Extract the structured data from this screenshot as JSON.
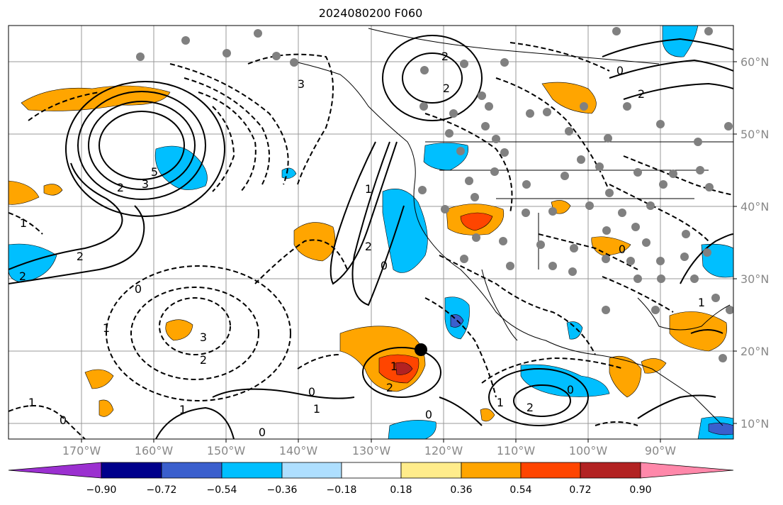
{
  "title": "2024080200 F060",
  "lat_labels": [
    "60°N",
    "50°N",
    "40°N",
    "30°N",
    "20°N",
    "10°N"
  ],
  "lon_labels": [
    "170°W",
    "160°W",
    "150°W",
    "140°W",
    "130°W",
    "120°W",
    "110°W",
    "100°W",
    "90°W"
  ],
  "colorbar": {
    "ticks": [
      "−0.90",
      "−0.72",
      "−0.54",
      "−0.36",
      "−0.18",
      "0.18",
      "0.36",
      "0.54",
      "0.72",
      "0.90"
    ],
    "colors": [
      "#9b30d0",
      "#00008b",
      "#3a5fcd",
      "#00bfff",
      "#aedfff",
      "#ffffff",
      "#ffec8b",
      "#ffa500",
      "#ff4500",
      "#b22222",
      "#ff88aa"
    ]
  },
  "contour_labels": [
    "5",
    "2",
    "3",
    "3",
    "2",
    "2",
    "1",
    "0",
    "2",
    "3",
    "1",
    "1",
    "0",
    "2",
    "1",
    "0",
    "1",
    "2",
    "2",
    "0",
    "0",
    "0",
    "2",
    "1",
    "1",
    "2",
    "0",
    "1",
    "2",
    "0",
    "1",
    "0"
  ]
}
